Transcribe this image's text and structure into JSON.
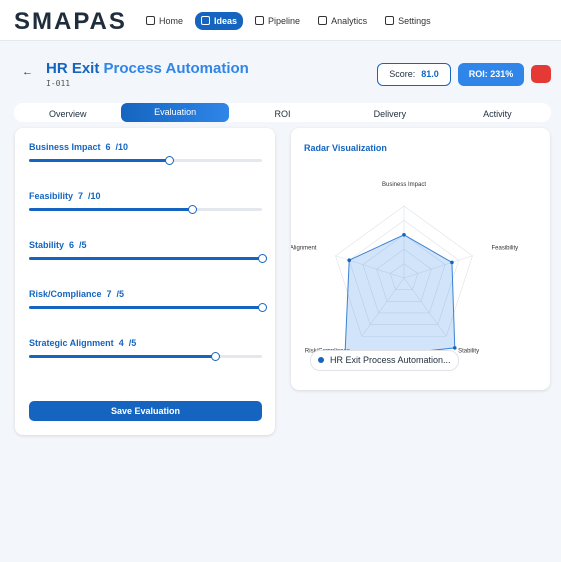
{
  "nav": {
    "brand": "SMAPAS",
    "items": [
      "Home",
      "Ideas",
      "Pipeline",
      "Analytics",
      "Settings"
    ]
  },
  "header": {
    "title_a": "HR Exit",
    "title_b": "Process Automation",
    "id": "I-011",
    "score_label": "Score:",
    "score": "81.0",
    "roi": "ROI: 231%"
  },
  "tabs": [
    "Overview",
    "Evaluation",
    "ROI",
    "Delivery",
    "Activity"
  ],
  "criteria": [
    {
      "name": "Business Impact",
      "value": 6,
      "scale": "/10"
    },
    {
      "name": "Feasibility",
      "value": 7,
      "scale": "/10"
    },
    {
      "name": "Stability",
      "value": 6,
      "scale": "/5"
    },
    {
      "name": "Risk/Compliance",
      "value": 7,
      "scale": "/5"
    },
    {
      "name": "Strategic Alignment",
      "value": 4,
      "scale": "/5"
    }
  ],
  "save_button": "Save Evaluation",
  "radar": {
    "title": "Radar Visualization",
    "axes": [
      "Business Impact",
      "Feasibility",
      "Stability",
      "Risk/Compliance",
      "Strategic Alignment"
    ],
    "legend": "HR Exit Process Automation..."
  }
}
